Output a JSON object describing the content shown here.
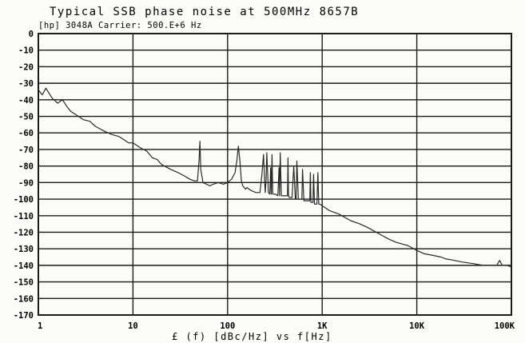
{
  "chart_data": {
    "type": "line",
    "title": "Typical SSB phase noise at 500MHz 8657B",
    "subtitle": "[hp] 3048A  Carrier: 500.E+6 Hz",
    "xlabel": "£ (f)  [dBc/Hz]  vs f[Hz]",
    "ylabel": "",
    "x_scale": "log",
    "xlim": [
      1,
      100000
    ],
    "ylim": [
      -170,
      0
    ],
    "x_ticks": [
      1,
      10,
      100,
      1000,
      10000,
      100000
    ],
    "x_tick_labels": [
      "1",
      "10",
      "100",
      "1K",
      "10K",
      "100K"
    ],
    "y_ticks": [
      0,
      -10,
      -20,
      -30,
      -40,
      -50,
      -60,
      -70,
      -80,
      -90,
      -100,
      -110,
      -120,
      -130,
      -140,
      -150,
      -160,
      -170
    ],
    "y_tick_labels": [
      "0",
      "-10",
      "-20",
      "-30",
      "-40",
      "-50",
      "-60",
      "-70",
      "-80",
      "-90",
      "-100",
      "-110",
      "-120",
      "-130",
      "-140",
      "-150",
      "-160",
      "-170"
    ],
    "grid": true,
    "line_color": "#2a2a2a",
    "series": [
      {
        "x": [
          1,
          1.1,
          1.2,
          1.4,
          1.6,
          1.8,
          2,
          2.2,
          2.5,
          3,
          3.5,
          4,
          5,
          6,
          7,
          8,
          9,
          10,
          12,
          14,
          16,
          18,
          20,
          25,
          30,
          35,
          40,
          45,
          48,
          50,
          51,
          52,
          55,
          60,
          65,
          70,
          80,
          90,
          100,
          110,
          120,
          125,
          130,
          135,
          140,
          145,
          150,
          155,
          160,
          180,
          200,
          220,
          230,
          240,
          245,
          250,
          255,
          260,
          270,
          280,
          285,
          290,
          295,
          300,
          320,
          340,
          350,
          355,
          360,
          370,
          390,
          420,
          430,
          435,
          440,
          450,
          480,
          500,
          520,
          530,
          540,
          560,
          600,
          610,
          620,
          640,
          700,
          740,
          750,
          760,
          790,
          800,
          810,
          830,
          850,
          880,
          900,
          920,
          940,
          1000,
          1200,
          1500,
          2000,
          2500,
          3000,
          4000,
          5000,
          6000,
          8000,
          10000,
          12000,
          15000,
          18000,
          20000,
          25000,
          30000,
          40000,
          50000,
          60000,
          70000,
          75000,
          80000,
          90000,
          100000
        ],
        "values": [
          -34,
          -37,
          -33,
          -39,
          -42,
          -40,
          -44,
          -47,
          -49,
          -52,
          -53,
          -56,
          -59,
          -61,
          -62,
          -64,
          -66,
          -66,
          -69,
          -71,
          -75,
          -76,
          -79,
          -82,
          -84,
          -86,
          -88,
          -89,
          -89,
          -76,
          -65,
          -82,
          -90,
          -91,
          -92,
          -91,
          -90,
          -91,
          -90,
          -88,
          -84,
          -77,
          -68,
          -77,
          -89,
          -92,
          -93,
          -94,
          -93,
          -95,
          -96,
          -96,
          -86,
          -73,
          -86,
          -96,
          -89,
          -72,
          -96,
          -97,
          -81,
          -97,
          -73,
          -97,
          -97,
          -98,
          -81,
          -98,
          -72,
          -98,
          -98,
          -98,
          -98,
          -75,
          -98,
          -99,
          -99,
          -80,
          -100,
          -100,
          -77,
          -100,
          -100,
          -100,
          -82,
          -101,
          -101,
          -101,
          -84,
          -102,
          -102,
          -102,
          -85,
          -103,
          -103,
          -103,
          -84,
          -103,
          -103,
          -104,
          -107,
          -109,
          -113,
          -115,
          -117,
          -121,
          -124,
          -126,
          -128,
          -131,
          -133,
          -134,
          -135,
          -136,
          -137,
          -138,
          -139,
          -140,
          -140,
          -140,
          -137,
          -140,
          -140,
          -141
        ]
      }
    ]
  }
}
